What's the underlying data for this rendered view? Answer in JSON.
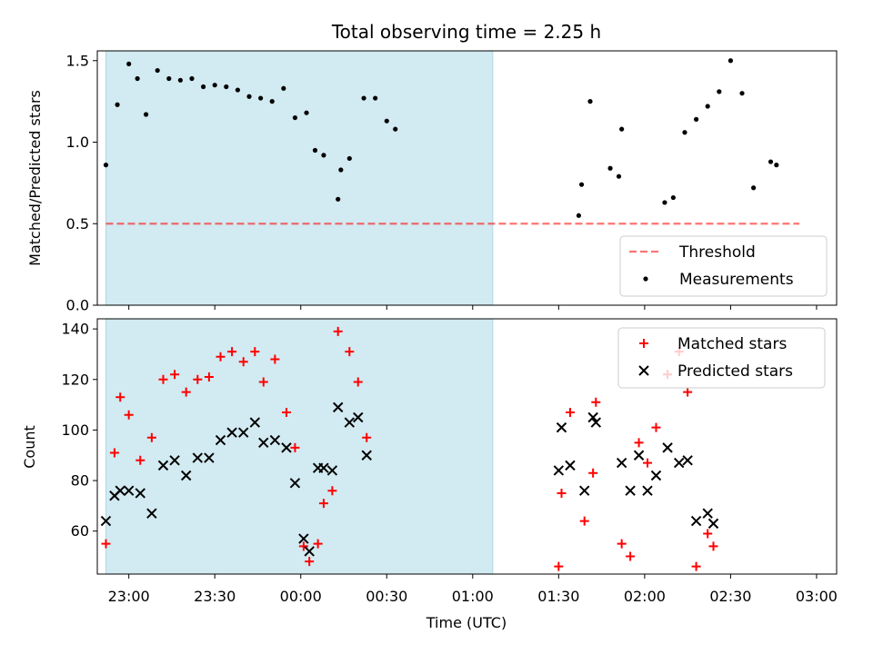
{
  "title": "Total observing time = 2.25 h",
  "colors": {
    "shade": "#add8e6",
    "threshold": "#ff0000",
    "matched": "#ff0000",
    "predicted": "#000000",
    "measurements": "#000000"
  },
  "chart_data": [
    {
      "type": "scatter",
      "panel": "top",
      "ylabel": "Matched/Predicted stars",
      "xlabel": "",
      "xlim": [
        "22:49",
        "03:07"
      ],
      "ylim": [
        0,
        1.56
      ],
      "y_ticks": [
        "0.0",
        "0.5",
        "1.0",
        "1.5"
      ],
      "shaded_span": [
        "22:52",
        "01:07"
      ],
      "threshold": {
        "name": "Threshold",
        "value": 0.5,
        "x_range": [
          "22:52",
          "02:54"
        ]
      },
      "legend": {
        "placement": "lower right",
        "entries": [
          "Threshold",
          "Measurements"
        ]
      },
      "series": [
        {
          "name": "Measurements",
          "marker": "dot",
          "points": [
            [
              "22:52",
              0.86
            ],
            [
              "22:56",
              1.23
            ],
            [
              "23:00",
              1.48
            ],
            [
              "23:03",
              1.39
            ],
            [
              "23:06",
              1.17
            ],
            [
              "23:10",
              1.44
            ],
            [
              "23:14",
              1.39
            ],
            [
              "23:18",
              1.38
            ],
            [
              "23:22",
              1.39
            ],
            [
              "23:26",
              1.34
            ],
            [
              "23:30",
              1.35
            ],
            [
              "23:34",
              1.34
            ],
            [
              "23:38",
              1.32
            ],
            [
              "23:42",
              1.28
            ],
            [
              "23:46",
              1.27
            ],
            [
              "23:50",
              1.25
            ],
            [
              "23:54",
              1.33
            ],
            [
              "23:58",
              1.15
            ],
            [
              "00:02",
              1.18
            ],
            [
              "00:05",
              0.95
            ],
            [
              "00:08",
              0.92
            ],
            [
              "00:13",
              0.65
            ],
            [
              "00:14",
              0.83
            ],
            [
              "00:17",
              0.9
            ],
            [
              "00:22",
              1.27
            ],
            [
              "00:26",
              1.27
            ],
            [
              "00:30",
              1.13
            ],
            [
              "00:33",
              1.08
            ],
            [
              "01:37",
              0.55
            ],
            [
              "01:38",
              0.74
            ],
            [
              "01:41",
              1.25
            ],
            [
              "01:48",
              0.84
            ],
            [
              "01:51",
              0.79
            ],
            [
              "01:52",
              1.08
            ],
            [
              "02:07",
              0.63
            ],
            [
              "02:10",
              0.66
            ],
            [
              "02:14",
              1.06
            ],
            [
              "02:18",
              1.14
            ],
            [
              "02:22",
              1.22
            ],
            [
              "02:26",
              1.31
            ],
            [
              "02:30",
              1.5
            ],
            [
              "02:34",
              1.3
            ],
            [
              "02:38",
              0.72
            ],
            [
              "02:44",
              0.88
            ],
            [
              "02:46",
              0.86
            ]
          ]
        }
      ]
    },
    {
      "type": "scatter",
      "panel": "bottom",
      "ylabel": "Count",
      "xlabel": "Time (UTC)",
      "xlim": [
        "22:49",
        "03:07"
      ],
      "ylim": [
        43,
        144
      ],
      "x_ticks": [
        "23:00",
        "23:30",
        "00:00",
        "00:30",
        "01:00",
        "01:30",
        "02:00",
        "02:30",
        "03:00"
      ],
      "y_ticks": [
        "60",
        "80",
        "100",
        "120",
        "140"
      ],
      "shaded_span": [
        "22:52",
        "01:07"
      ],
      "legend": {
        "placement": "upper right",
        "entries": [
          "Matched stars",
          "Predicted stars"
        ]
      },
      "series": [
        {
          "name": "Matched stars",
          "marker": "plus",
          "points": [
            [
              "22:52",
              55
            ],
            [
              "22:55",
              91
            ],
            [
              "22:57",
              113
            ],
            [
              "23:00",
              106
            ],
            [
              "23:04",
              88
            ],
            [
              "23:08",
              97
            ],
            [
              "23:12",
              120
            ],
            [
              "23:16",
              122
            ],
            [
              "23:20",
              115
            ],
            [
              "23:24",
              120
            ],
            [
              "23:28",
              121
            ],
            [
              "23:32",
              129
            ],
            [
              "23:36",
              131
            ],
            [
              "23:40",
              127
            ],
            [
              "23:44",
              131
            ],
            [
              "23:47",
              119
            ],
            [
              "23:51",
              128
            ],
            [
              "23:55",
              107
            ],
            [
              "23:58",
              93
            ],
            [
              "00:01",
              54
            ],
            [
              "00:03",
              48
            ],
            [
              "00:06",
              55
            ],
            [
              "00:08",
              71
            ],
            [
              "00:11",
              76
            ],
            [
              "00:13",
              139
            ],
            [
              "00:17",
              131
            ],
            [
              "00:20",
              119
            ],
            [
              "00:23",
              97
            ],
            [
              "01:30",
              46
            ],
            [
              "01:31",
              75
            ],
            [
              "01:34",
              107
            ],
            [
              "01:39",
              64
            ],
            [
              "01:42",
              83
            ],
            [
              "01:43",
              111
            ],
            [
              "01:52",
              55
            ],
            [
              "01:55",
              50
            ],
            [
              "01:58",
              95
            ],
            [
              "02:01",
              87
            ],
            [
              "02:04",
              101
            ],
            [
              "02:08",
              122
            ],
            [
              "02:12",
              131
            ],
            [
              "02:15",
              115
            ],
            [
              "02:18",
              46
            ],
            [
              "02:22",
              59
            ],
            [
              "02:24",
              54
            ]
          ]
        },
        {
          "name": "Predicted stars",
          "marker": "x",
          "points": [
            [
              "22:52",
              64
            ],
            [
              "22:55",
              74
            ],
            [
              "22:57",
              76
            ],
            [
              "23:00",
              76
            ],
            [
              "23:04",
              75
            ],
            [
              "23:08",
              67
            ],
            [
              "23:12",
              86
            ],
            [
              "23:16",
              88
            ],
            [
              "23:20",
              82
            ],
            [
              "23:24",
              89
            ],
            [
              "23:28",
              89
            ],
            [
              "23:32",
              96
            ],
            [
              "23:36",
              99
            ],
            [
              "23:40",
              99
            ],
            [
              "23:44",
              103
            ],
            [
              "23:47",
              95
            ],
            [
              "23:51",
              96
            ],
            [
              "23:55",
              93
            ],
            [
              "23:58",
              79
            ],
            [
              "00:01",
              57
            ],
            [
              "00:03",
              52
            ],
            [
              "00:06",
              85
            ],
            [
              "00:08",
              85
            ],
            [
              "00:11",
              84
            ],
            [
              "00:13",
              109
            ],
            [
              "00:17",
              103
            ],
            [
              "00:20",
              105
            ],
            [
              "00:23",
              90
            ],
            [
              "01:30",
              84
            ],
            [
              "01:31",
              101
            ],
            [
              "01:34",
              86
            ],
            [
              "01:39",
              76
            ],
            [
              "01:42",
              105
            ],
            [
              "01:43",
              103
            ],
            [
              "01:52",
              87
            ],
            [
              "01:55",
              76
            ],
            [
              "01:58",
              90
            ],
            [
              "02:01",
              76
            ],
            [
              "02:04",
              82
            ],
            [
              "02:08",
              93
            ],
            [
              "02:12",
              87
            ],
            [
              "02:15",
              88
            ],
            [
              "02:18",
              64
            ],
            [
              "02:22",
              67
            ],
            [
              "02:24",
              63
            ]
          ]
        }
      ]
    }
  ]
}
